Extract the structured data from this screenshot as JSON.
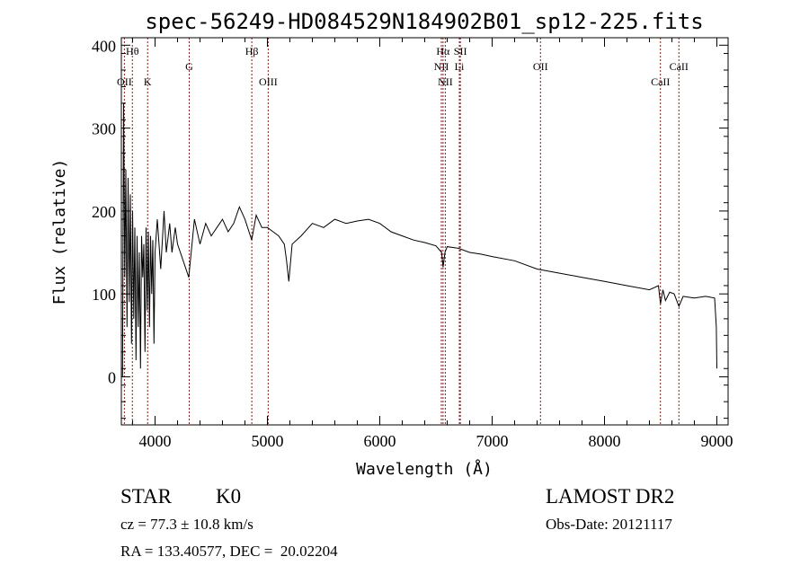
{
  "chart_data": {
    "type": "line",
    "title": "spec-56249-HD084529N184902B01_sp12-225.fits",
    "xlabel": "Wavelength (Å)",
    "ylabel": "Flux (relative)",
    "xlim": [
      3700,
      9100
    ],
    "ylim": [
      -58,
      409
    ],
    "xticks": [
      4000,
      5000,
      6000,
      7000,
      8000,
      9000
    ],
    "xtick_labels": [
      "4000",
      "5000",
      "6000",
      "7000",
      "8000",
      "9000"
    ],
    "yticks": [
      0,
      100,
      200,
      300,
      400
    ],
    "ytick_labels": [
      "0",
      "100",
      "200",
      "300",
      "400"
    ],
    "grid": false,
    "series": [
      {
        "name": "spectrum",
        "color": "#000000",
        "x": [
          3710,
          3720,
          3730,
          3740,
          3750,
          3760,
          3770,
          3780,
          3790,
          3800,
          3810,
          3820,
          3830,
          3840,
          3850,
          3860,
          3870,
          3880,
          3890,
          3900,
          3910,
          3920,
          3930,
          3940,
          3950,
          3960,
          3970,
          3980,
          3990,
          4000,
          4020,
          4050,
          4080,
          4100,
          4130,
          4150,
          4180,
          4200,
          4250,
          4300,
          4350,
          4400,
          4450,
          4500,
          4550,
          4600,
          4650,
          4700,
          4750,
          4800,
          4860,
          4900,
          4950,
          5000,
          5050,
          5100,
          5150,
          5170,
          5190,
          5220,
          5300,
          5400,
          5500,
          5600,
          5700,
          5800,
          5900,
          6000,
          6100,
          6200,
          6300,
          6400,
          6500,
          6550,
          6563,
          6580,
          6600,
          6700,
          6800,
          6900,
          7000,
          7200,
          7400,
          7600,
          7800,
          8000,
          8200,
          8400,
          8480,
          8498,
          8520,
          8542,
          8580,
          8620,
          8662,
          8700,
          8800,
          8900,
          8980,
          8995,
          9000
        ],
        "y": [
          0,
          330,
          120,
          250,
          60,
          240,
          90,
          220,
          40,
          200,
          70,
          180,
          20,
          170,
          60,
          150,
          10,
          170,
          120,
          160,
          30,
          180,
          80,
          175,
          60,
          170,
          100,
          165,
          40,
          150,
          190,
          130,
          200,
          150,
          185,
          150,
          180,
          160,
          140,
          120,
          190,
          160,
          185,
          170,
          180,
          190,
          175,
          185,
          205,
          190,
          165,
          195,
          180,
          180,
          175,
          170,
          160,
          140,
          115,
          160,
          170,
          185,
          180,
          190,
          185,
          188,
          190,
          185,
          175,
          170,
          165,
          162,
          158,
          150,
          132,
          150,
          157,
          155,
          150,
          148,
          145,
          140,
          130,
          125,
          120,
          115,
          110,
          105,
          110,
          88,
          105,
          92,
          102,
          100,
          85,
          97,
          95,
          97,
          95,
          60,
          10
        ]
      }
    ],
    "line_markers": [
      {
        "label": "OII",
        "wavelength": 3727,
        "row": 3
      },
      {
        "label": "Hθ",
        "wavelength": 3798,
        "row": 1
      },
      {
        "label": "K",
        "wavelength": 3934,
        "row": 3
      },
      {
        "label": "G",
        "wavelength": 4304,
        "row": 2
      },
      {
        "label": "Hβ",
        "wavelength": 4861,
        "row": 1
      },
      {
        "label": "OIII",
        "wavelength": 5007,
        "row": 3
      },
      {
        "label": "NII",
        "wavelength": 6548,
        "row": 2
      },
      {
        "label": "Hα",
        "wavelength": 6563,
        "row": 1
      },
      {
        "label": "NII",
        "wavelength": 6583,
        "row": 3
      },
      {
        "label": "Li",
        "wavelength": 6708,
        "row": 2
      },
      {
        "label": "SII",
        "wavelength": 6717,
        "row": 1
      },
      {
        "label": "OII",
        "wavelength": 7430,
        "row": 2
      },
      {
        "label": "CaII",
        "wavelength": 8498,
        "row": 3
      },
      {
        "label": "CaII",
        "wavelength": 8662,
        "row": 2
      }
    ],
    "marker_color": "#8b1a1a"
  },
  "info": {
    "class": "STAR",
    "subclass": "K0",
    "survey": "LAMOST DR2",
    "cz": "cz = 77.3 ± 10.8 km/s",
    "obs_date": "Obs-Date: 20121117",
    "coords": "RA = 133.40577, DEC =  20.02204"
  }
}
